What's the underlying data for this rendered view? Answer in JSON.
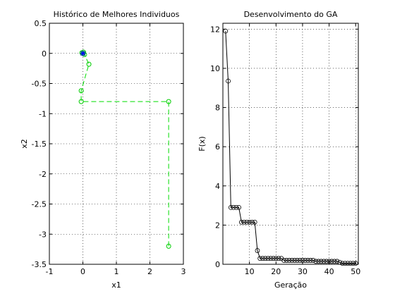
{
  "figure": {
    "background": "#ffffff"
  },
  "chart_data": [
    {
      "type": "scatter",
      "title": "Histórico de Melhores Individuos",
      "xlabel": "x1",
      "ylabel": "x2",
      "xlim": [
        -1,
        3
      ],
      "ylim": [
        -3.5,
        0.5
      ],
      "xticks": [
        -1,
        0,
        1,
        2,
        3
      ],
      "yticks": [
        -3.5,
        -3,
        -2.5,
        -2,
        -1.5,
        -1,
        -0.5,
        0,
        0.5
      ],
      "xtick_labels": [
        "-1",
        "0",
        "1",
        "2",
        "3"
      ],
      "ytick_labels": [
        "-3.5",
        "-3",
        "-2.5",
        "-2",
        "-1.5",
        "-1",
        "-0.5",
        "0",
        "0.5"
      ],
      "grid": true,
      "color": "#00dd00",
      "marker_color": "#00cc00",
      "final_marker_color": "#0000ff",
      "series": [
        {
          "x": [
            2.56,
            2.56,
            -0.05,
            -0.05,
            0.18,
            0.05,
            0.02,
            -0.03,
            0.0,
            0.01
          ],
          "y": [
            -3.2,
            -0.8,
            -0.8,
            -0.62,
            -0.18,
            -0.02,
            0.02,
            0.01,
            0.0,
            0.0
          ]
        }
      ],
      "best_point": {
        "x": 0.0,
        "y": 0.0
      }
    },
    {
      "type": "line",
      "title": "Desenvolvimento do GA",
      "xlabel": "Geração",
      "ylabel": "F(x)",
      "xlim": [
        0,
        51
      ],
      "ylim": [
        0,
        12.3
      ],
      "xticks": [
        10,
        20,
        30,
        40,
        50
      ],
      "yticks": [
        0,
        2,
        4,
        6,
        8,
        10,
        12
      ],
      "xtick_labels": [
        "10",
        "20",
        "30",
        "40",
        "50"
      ],
      "ytick_labels": [
        "0",
        "2",
        "4",
        "6",
        "8",
        "10",
        "12"
      ],
      "grid": true,
      "color": "#000000",
      "series": [
        {
          "x": [
            1,
            2,
            3,
            4,
            5,
            6,
            7,
            8,
            9,
            10,
            11,
            12,
            13,
            14,
            15,
            16,
            17,
            18,
            19,
            20,
            21,
            22,
            23,
            24,
            25,
            26,
            27,
            28,
            29,
            30,
            31,
            32,
            33,
            34,
            35,
            36,
            37,
            38,
            39,
            40,
            41,
            42,
            43,
            44,
            45,
            46,
            47,
            48,
            49,
            50
          ],
          "y": [
            11.9,
            9.35,
            2.9,
            2.9,
            2.9,
            2.9,
            2.15,
            2.15,
            2.15,
            2.15,
            2.15,
            2.15,
            0.7,
            0.3,
            0.3,
            0.3,
            0.3,
            0.3,
            0.3,
            0.3,
            0.3,
            0.3,
            0.2,
            0.2,
            0.2,
            0.2,
            0.2,
            0.2,
            0.2,
            0.2,
            0.2,
            0.2,
            0.2,
            0.2,
            0.15,
            0.15,
            0.15,
            0.15,
            0.15,
            0.15,
            0.15,
            0.15,
            0.15,
            0.1,
            0.05,
            0.05,
            0.05,
            0.05,
            0.05,
            0.05
          ]
        }
      ]
    }
  ]
}
